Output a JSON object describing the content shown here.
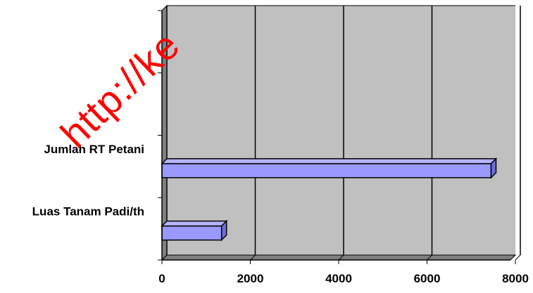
{
  "chart_data": {
    "type": "bar",
    "orientation": "horizontal",
    "categories": [
      "Luas Tanam Padi/th",
      "Jumlah RT Petani",
      "",
      ""
    ],
    "values": [
      1350,
      7450,
      null,
      null
    ],
    "x_ticks": [
      "0",
      "2000",
      "4000",
      "6000",
      "8000"
    ],
    "xlim": [
      0,
      8000
    ],
    "grid": true,
    "legend": "none",
    "bar_color": "#9999ff",
    "bar_top_color": "#b3b3ff",
    "bar_side_color": "#6e6ed6",
    "plot_background": "#c0c0c0",
    "wall_color": "#808080"
  },
  "watermark": {
    "text": "http://ke",
    "color": "#ff0000"
  }
}
